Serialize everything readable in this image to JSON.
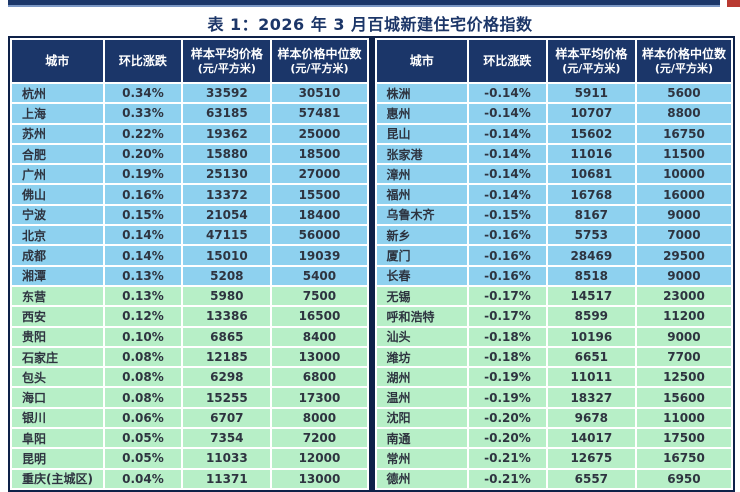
{
  "page": {
    "title": "表 1：2026 年 3 月百城新建住宅价格指数"
  },
  "colors": {
    "header_bg": "#1b3669",
    "title_color": "#1c3668",
    "row_blue": "#8ed1ef",
    "row_green": "#b7efc7",
    "accent_red": "#b93a32",
    "outer_border": "#0e2148"
  },
  "columns": [
    {
      "label": "城市",
      "sub": ""
    },
    {
      "label": "环比涨跌",
      "sub": ""
    },
    {
      "label": "样本平均价格",
      "sub": "(元/平方米)"
    },
    {
      "label": "样本价格中位数",
      "sub": "(元/平方米)"
    }
  ],
  "tables": [
    {
      "side": "left",
      "rows": [
        {
          "city": "杭州",
          "change": "0.34%",
          "avg": "33592",
          "median": "30510",
          "tone": "blue"
        },
        {
          "city": "上海",
          "change": "0.33%",
          "avg": "63185",
          "median": "57481",
          "tone": "blue"
        },
        {
          "city": "苏州",
          "change": "0.22%",
          "avg": "19362",
          "median": "25000",
          "tone": "blue"
        },
        {
          "city": "合肥",
          "change": "0.20%",
          "avg": "15880",
          "median": "18500",
          "tone": "blue"
        },
        {
          "city": "广州",
          "change": "0.19%",
          "avg": "25130",
          "median": "27000",
          "tone": "blue"
        },
        {
          "city": "佛山",
          "change": "0.16%",
          "avg": "13372",
          "median": "15500",
          "tone": "blue"
        },
        {
          "city": "宁波",
          "change": "0.15%",
          "avg": "21054",
          "median": "18400",
          "tone": "blue"
        },
        {
          "city": "北京",
          "change": "0.14%",
          "avg": "47115",
          "median": "56000",
          "tone": "blue"
        },
        {
          "city": "成都",
          "change": "0.14%",
          "avg": "15010",
          "median": "19039",
          "tone": "blue"
        },
        {
          "city": "湘潭",
          "change": "0.13%",
          "avg": "5208",
          "median": "5400",
          "tone": "blue"
        },
        {
          "city": "东营",
          "change": "0.13%",
          "avg": "5980",
          "median": "7500",
          "tone": "green"
        },
        {
          "city": "西安",
          "change": "0.12%",
          "avg": "13386",
          "median": "16500",
          "tone": "green"
        },
        {
          "city": "贵阳",
          "change": "0.10%",
          "avg": "6865",
          "median": "8400",
          "tone": "green"
        },
        {
          "city": "石家庄",
          "change": "0.08%",
          "avg": "12185",
          "median": "13000",
          "tone": "green"
        },
        {
          "city": "包头",
          "change": "0.08%",
          "avg": "6298",
          "median": "6800",
          "tone": "green"
        },
        {
          "city": "海口",
          "change": "0.08%",
          "avg": "15255",
          "median": "17300",
          "tone": "green"
        },
        {
          "city": "银川",
          "change": "0.06%",
          "avg": "6707",
          "median": "8000",
          "tone": "green"
        },
        {
          "city": "阜阳",
          "change": "0.05%",
          "avg": "7354",
          "median": "7200",
          "tone": "green"
        },
        {
          "city": "昆明",
          "change": "0.05%",
          "avg": "11033",
          "median": "12000",
          "tone": "green"
        },
        {
          "city": "重庆(主城区)",
          "change": "0.04%",
          "avg": "11371",
          "median": "13000",
          "tone": "green"
        }
      ]
    },
    {
      "side": "right",
      "rows": [
        {
          "city": "株洲",
          "change": "-0.14%",
          "avg": "5911",
          "median": "5600",
          "tone": "blue"
        },
        {
          "city": "惠州",
          "change": "-0.14%",
          "avg": "10707",
          "median": "8800",
          "tone": "blue"
        },
        {
          "city": "昆山",
          "change": "-0.14%",
          "avg": "15602",
          "median": "16750",
          "tone": "blue"
        },
        {
          "city": "张家港",
          "change": "-0.14%",
          "avg": "11016",
          "median": "11500",
          "tone": "blue"
        },
        {
          "city": "漳州",
          "change": "-0.14%",
          "avg": "10681",
          "median": "10000",
          "tone": "blue"
        },
        {
          "city": "福州",
          "change": "-0.14%",
          "avg": "16768",
          "median": "16000",
          "tone": "blue"
        },
        {
          "city": "乌鲁木齐",
          "change": "-0.15%",
          "avg": "8167",
          "median": "9000",
          "tone": "blue"
        },
        {
          "city": "新乡",
          "change": "-0.16%",
          "avg": "5753",
          "median": "7000",
          "tone": "blue"
        },
        {
          "city": "厦门",
          "change": "-0.16%",
          "avg": "28469",
          "median": "29500",
          "tone": "blue"
        },
        {
          "city": "长春",
          "change": "-0.16%",
          "avg": "8518",
          "median": "9000",
          "tone": "blue"
        },
        {
          "city": "无锡",
          "change": "-0.17%",
          "avg": "14517",
          "median": "23000",
          "tone": "green"
        },
        {
          "city": "呼和浩特",
          "change": "-0.17%",
          "avg": "8599",
          "median": "11200",
          "tone": "green"
        },
        {
          "city": "汕头",
          "change": "-0.18%",
          "avg": "10196",
          "median": "9000",
          "tone": "green"
        },
        {
          "city": "潍坊",
          "change": "-0.18%",
          "avg": "6651",
          "median": "7700",
          "tone": "green"
        },
        {
          "city": "湖州",
          "change": "-0.19%",
          "avg": "11011",
          "median": "12500",
          "tone": "green"
        },
        {
          "city": "温州",
          "change": "-0.19%",
          "avg": "18327",
          "median": "15600",
          "tone": "green"
        },
        {
          "city": "沈阳",
          "change": "-0.20%",
          "avg": "9678",
          "median": "11000",
          "tone": "green"
        },
        {
          "city": "南通",
          "change": "-0.20%",
          "avg": "14017",
          "median": "17500",
          "tone": "green"
        },
        {
          "city": "常州",
          "change": "-0.21%",
          "avg": "12675",
          "median": "16750",
          "tone": "green"
        },
        {
          "city": "德州",
          "change": "-0.21%",
          "avg": "6557",
          "median": "6950",
          "tone": "green"
        }
      ]
    }
  ]
}
